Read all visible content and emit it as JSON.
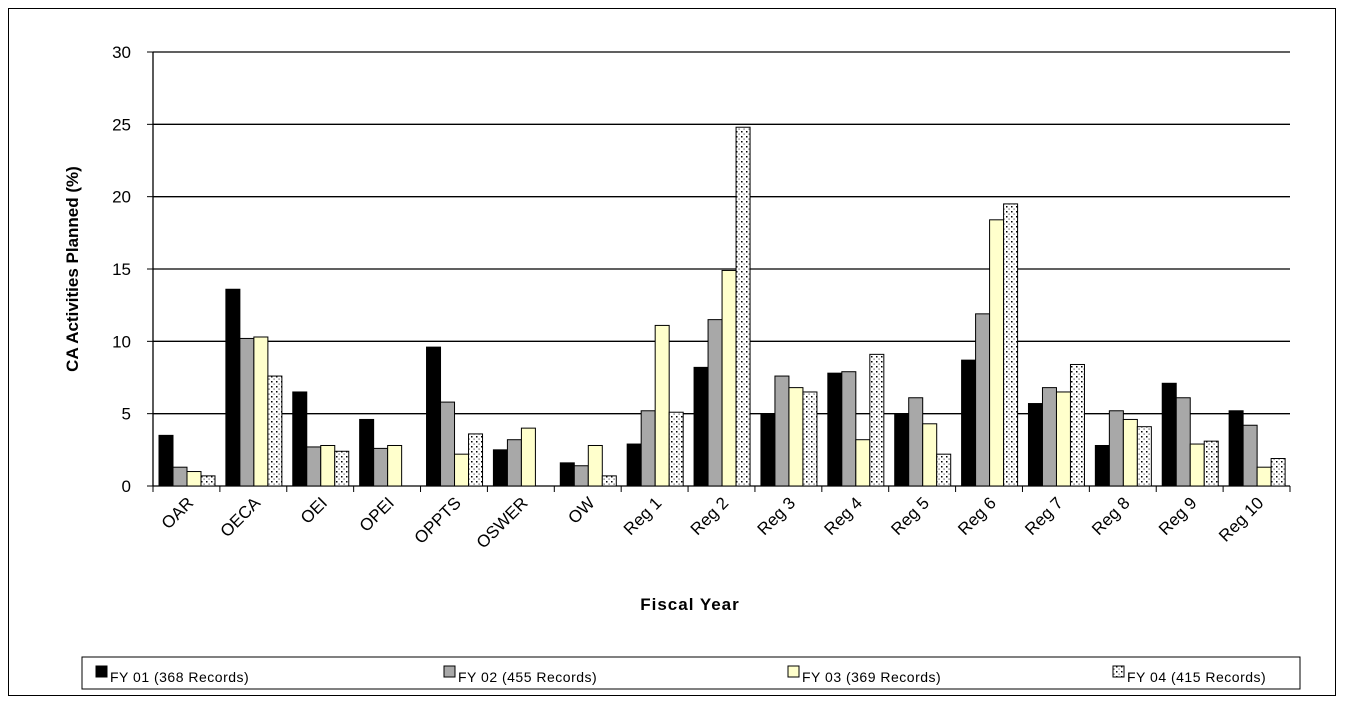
{
  "chart_data": {
    "type": "bar",
    "title": "",
    "xlabel": "Fiscal Year",
    "ylabel": "CA Activities Planned (%)",
    "ylim": [
      0,
      30
    ],
    "yticks": [
      "0",
      "5",
      "10",
      "15",
      "20",
      "25",
      "30"
    ],
    "grid": "horizontal",
    "legend_position": "bottom",
    "categories": [
      "OAR",
      "OECA",
      "OEI",
      "OPEI",
      "OPPTS",
      "OSWER",
      "OW",
      "Reg 1",
      "Reg 2",
      "Reg 3",
      "Reg 4",
      "Reg 5",
      "Reg 6",
      "Reg 7",
      "Reg 8",
      "Reg 9",
      "Reg 10"
    ],
    "series": [
      {
        "name": "FY 01  (368 Records)",
        "color": "#000000",
        "pattern": "solid",
        "values": [
          3.5,
          13.6,
          6.5,
          4.6,
          9.6,
          2.5,
          1.6,
          2.9,
          8.2,
          5.0,
          7.8,
          5.0,
          8.7,
          5.7,
          2.8,
          7.1,
          5.2
        ]
      },
      {
        "name": "FY 02 (455  Records)",
        "color": "#a8a8a8",
        "pattern": "solid",
        "values": [
          1.3,
          10.2,
          2.7,
          2.6,
          5.8,
          3.2,
          1.4,
          5.2,
          11.5,
          7.6,
          7.9,
          6.1,
          11.9,
          6.8,
          5.2,
          6.1,
          4.2
        ]
      },
      {
        "name": "FY 03  (369 Records)",
        "color": "#ffffcc",
        "pattern": "solid",
        "values": [
          1.0,
          10.3,
          2.8,
          2.8,
          2.2,
          4.0,
          2.8,
          11.1,
          14.9,
          6.8,
          3.2,
          4.3,
          18.4,
          6.5,
          4.6,
          2.9,
          1.3
        ]
      },
      {
        "name": "FY 04 (415  Records)",
        "color": "#ffffff",
        "pattern": "dots",
        "values": [
          0.7,
          7.6,
          2.4,
          null,
          3.6,
          null,
          0.7,
          5.1,
          24.8,
          6.5,
          9.1,
          2.2,
          19.5,
          8.4,
          4.1,
          3.1,
          1.9
        ]
      }
    ]
  }
}
